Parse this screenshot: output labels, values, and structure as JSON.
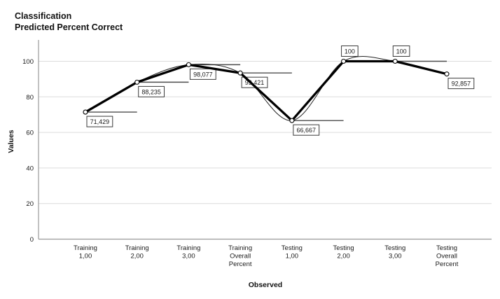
{
  "title": {
    "line1": "Classification",
    "line2": "Predicted Percent Correct"
  },
  "chart_data": {
    "type": "line",
    "title": "Classification Predicted Percent Correct",
    "xlabel": "Observed",
    "ylabel": "Values",
    "categories": [
      [
        "Training",
        "1,00"
      ],
      [
        "Training",
        "2,00"
      ],
      [
        "Training",
        "3,00"
      ],
      [
        "Training",
        "Overall",
        "Percent"
      ],
      [
        "Testing",
        "1,00"
      ],
      [
        "Testing",
        "2,00"
      ],
      [
        "Testing",
        "3,00"
      ],
      [
        "Testing",
        "Overall",
        "Percent"
      ]
    ],
    "values": [
      71.429,
      88.235,
      98.077,
      93.421,
      66.667,
      100,
      100,
      92.857
    ],
    "point_labels": [
      "71,429",
      "88,235",
      "98,077",
      "93,421",
      "66,667",
      "100",
      "100",
      "92,857"
    ],
    "point_label_positions": [
      "below",
      "below",
      "below",
      "below",
      "below",
      "above",
      "above",
      "below"
    ],
    "y_ticks": [
      0,
      20,
      40,
      60,
      80,
      100
    ],
    "y_tick_labels": [
      "0",
      "20",
      "40",
      "60",
      "80",
      "100"
    ],
    "ylim": [
      0,
      110
    ],
    "grid": true,
    "legend": false,
    "interpolations": [
      "straight",
      "spline",
      "step"
    ],
    "colors": {
      "background": "#ffffff",
      "text": "#1a1a1a",
      "grid": "#dcdcdc",
      "axis": "#9a9a9a",
      "line_main": "#000000",
      "line_spline": "#222222",
      "line_step": "#4d4d4d",
      "label_box_border": "#3a3a3a",
      "label_box_fill": "#ffffff",
      "marker_fill": "#ffffff",
      "marker_stroke": "#000000"
    }
  }
}
